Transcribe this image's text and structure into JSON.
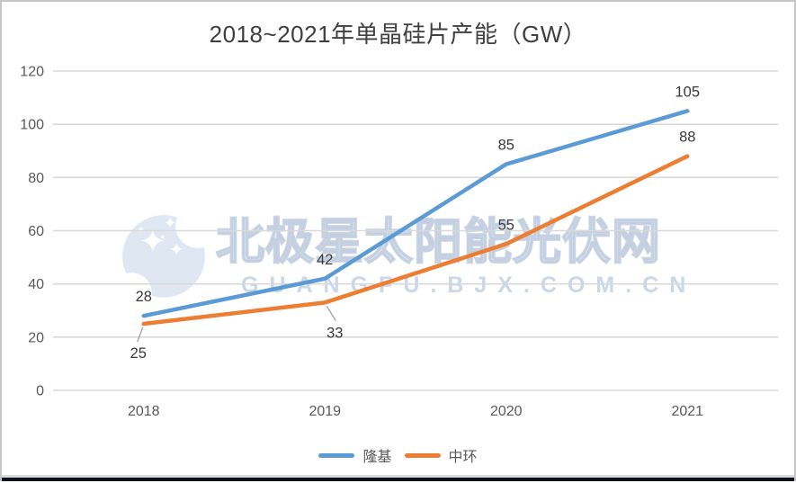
{
  "header": {
    "title": "2018~2021年单晶硅片产能（GW）"
  },
  "watermark": {
    "logo": "polar-star-logo",
    "line1": "北极星太阳能光伏网",
    "line2": "GUANGFU.BJX.COM.CN"
  },
  "chart_data": {
    "type": "line",
    "title": "2018~2021年单晶硅片产能（GW）",
    "categories": [
      "2018",
      "2019",
      "2020",
      "2021"
    ],
    "series": [
      {
        "name": "隆基",
        "color": "#5B9BD5",
        "values": [
          28,
          42,
          85,
          105
        ],
        "label_positions": [
          "above",
          "above",
          "above",
          "above"
        ]
      },
      {
        "name": "中环",
        "color": "#ED7D31",
        "values": [
          25,
          33,
          55,
          88
        ],
        "label_positions": [
          "below-left",
          "below-right",
          "above",
          "above"
        ]
      }
    ],
    "xlabel": "",
    "ylabel": "",
    "ylim": [
      0,
      120
    ],
    "ytick_step": 20,
    "grid": true,
    "legend_position": "bottom",
    "styles": {
      "grid_color": "#D9D9D9",
      "axis_text_color": "#595959",
      "data_label_color": "#3A3A3A",
      "leader_color": "#A6A6A6",
      "line_width": 4.5
    }
  }
}
